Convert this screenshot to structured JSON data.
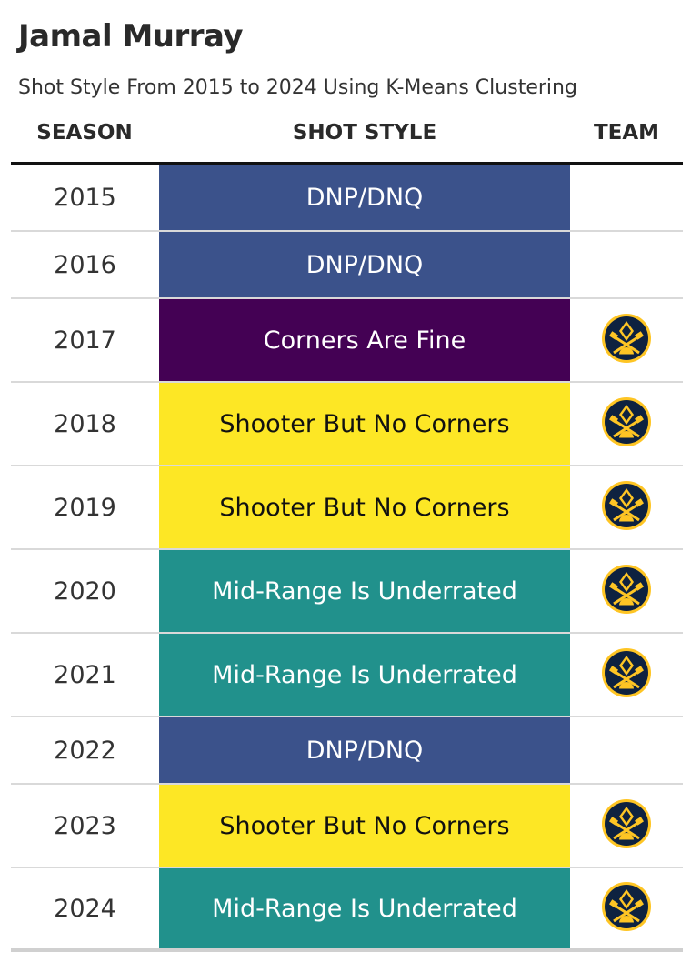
{
  "title": "Jamal Murray",
  "subtitle": "Shot Style From 2015 to 2024 Using K-Means Clustering",
  "headers": {
    "season": "SEASON",
    "shot_style": "SHOT STYLE",
    "team": "TEAM"
  },
  "colors": {
    "DNP/DNQ": "#3b528b",
    "Corners Are Fine": "#440154",
    "Shooter But No Corners": "#fde725",
    "Mid-Range Is Underrated": "#21918c"
  },
  "text_colors": {
    "DNP/DNQ": "#ffffff",
    "Corners Are Fine": "#ffffff",
    "Shooter But No Corners": "#111111",
    "Mid-Range Is Underrated": "#ffffff"
  },
  "chart_data": {
    "type": "table",
    "columns": [
      "SEASON",
      "SHOT STYLE",
      "TEAM"
    ],
    "rows": [
      {
        "season": "2015",
        "shot_style": "DNP/DNQ",
        "team": ""
      },
      {
        "season": "2016",
        "shot_style": "DNP/DNQ",
        "team": ""
      },
      {
        "season": "2017",
        "shot_style": "Corners Are Fine",
        "team": "nuggets-logo-icon"
      },
      {
        "season": "2018",
        "shot_style": "Shooter But No Corners",
        "team": "nuggets-logo-icon"
      },
      {
        "season": "2019",
        "shot_style": "Shooter But No Corners",
        "team": "nuggets-logo-icon"
      },
      {
        "season": "2020",
        "shot_style": "Mid-Range Is Underrated",
        "team": "nuggets-logo-icon"
      },
      {
        "season": "2021",
        "shot_style": "Mid-Range Is Underrated",
        "team": "nuggets-logo-icon"
      },
      {
        "season": "2022",
        "shot_style": "DNP/DNQ",
        "team": ""
      },
      {
        "season": "2023",
        "shot_style": "Shooter But No Corners",
        "team": "nuggets-logo-icon"
      },
      {
        "season": "2024",
        "shot_style": "Mid-Range Is Underrated",
        "team": "nuggets-logo-icon"
      }
    ]
  }
}
